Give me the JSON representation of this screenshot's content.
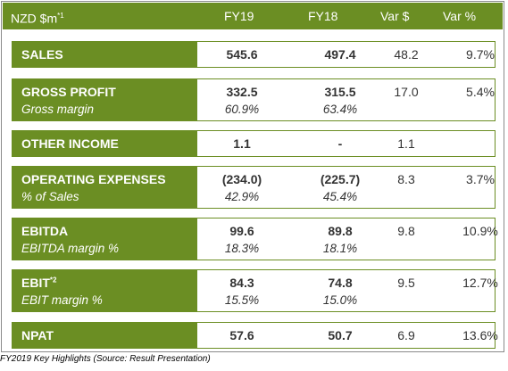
{
  "header": {
    "unit_label": "NZD $m",
    "unit_superscript": "*1",
    "columns": [
      "FY19",
      "FY18",
      "Var $",
      "Var %"
    ]
  },
  "rows": [
    {
      "label": "SALES",
      "values": [
        "545.6",
        "497.4",
        "48.2",
        "9.7%"
      ]
    },
    {
      "label": "GROSS PROFIT",
      "values": [
        "332.5",
        "315.5",
        "17.0",
        "5.4%"
      ],
      "sub_label": "Gross margin",
      "sub_values": [
        "60.9%",
        "63.4%"
      ]
    },
    {
      "label": "OTHER INCOME",
      "values": [
        "1.1",
        "-",
        "1.1",
        ""
      ]
    },
    {
      "label": "OPERATING EXPENSES",
      "values": [
        "(234.0)",
        "(225.7)",
        "8.3",
        "3.7%"
      ],
      "sub_label": "% of Sales",
      "sub_values": [
        "42.9%",
        "45.4%"
      ]
    },
    {
      "label": "EBITDA",
      "values": [
        "99.6",
        "89.8",
        "9.8",
        "10.9%"
      ],
      "sub_label": "EBITDA margin %",
      "sub_values": [
        "18.3%",
        "18.1%"
      ]
    },
    {
      "label": "EBIT",
      "label_superscript": "*2",
      "values": [
        "84.3",
        "74.8",
        "9.5",
        "12.7%"
      ],
      "sub_label": "EBIT margin %",
      "sub_values": [
        "15.5%",
        "15.0%"
      ]
    },
    {
      "label": "NPAT",
      "values": [
        "57.6",
        "50.7",
        "6.9",
        "13.6%"
      ]
    }
  ],
  "caption": "FY2019 Key Highlights (Source: Result Presentation)",
  "colors": {
    "accent": "#6b8e23",
    "text": "#333333",
    "background": "#ffffff"
  }
}
